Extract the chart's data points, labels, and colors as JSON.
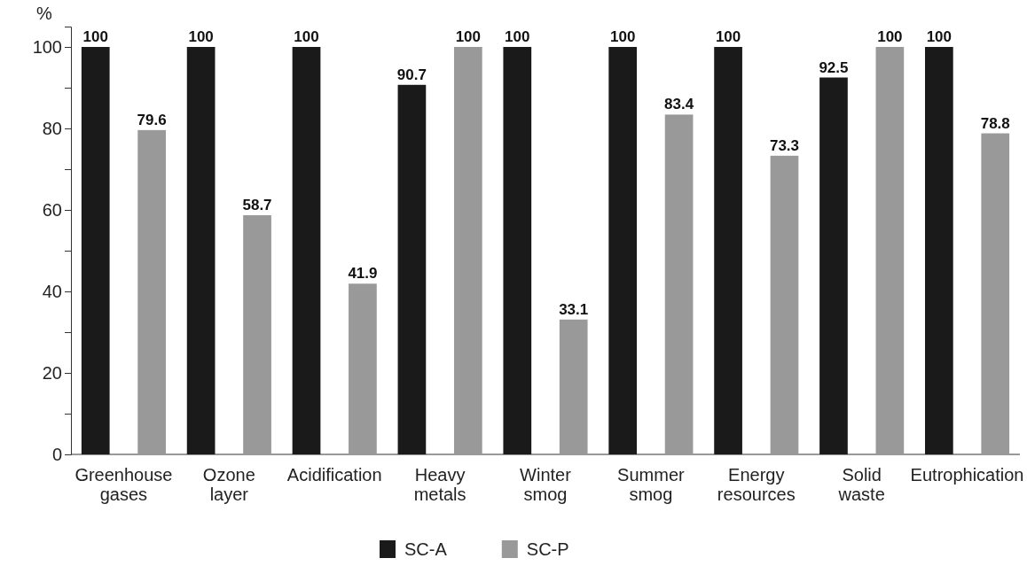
{
  "chart_data": {
    "type": "bar",
    "ylabel": "%",
    "categories": [
      "Greenhouse gases",
      "Ozone layer",
      "Acidification",
      "Heavy metals",
      "Winter smog",
      "Summer smog",
      "Energy resources",
      "Solid waste",
      "Eutrophication"
    ],
    "series": [
      {
        "name": "SC-A",
        "color": "#1a1a1a",
        "values": [
          100,
          100,
          100,
          90.7,
          100,
          100,
          100,
          92.5,
          100
        ]
      },
      {
        "name": "SC-P",
        "color": "#999999",
        "values": [
          79.6,
          58.7,
          41.9,
          100,
          33.1,
          83.4,
          73.3,
          100,
          78.8
        ]
      }
    ],
    "ylim": [
      0,
      105
    ],
    "yticks": [
      0,
      {
        "value": 10,
        "label": null
      },
      20,
      {
        "value": 30,
        "label": null
      },
      40,
      {
        "value": 50,
        "label": null
      },
      60,
      {
        "value": 70,
        "label": null
      },
      80,
      {
        "value": 90,
        "label": null
      },
      100
    ],
    "data_labels": true,
    "legend": "bottom",
    "grid": false
  }
}
